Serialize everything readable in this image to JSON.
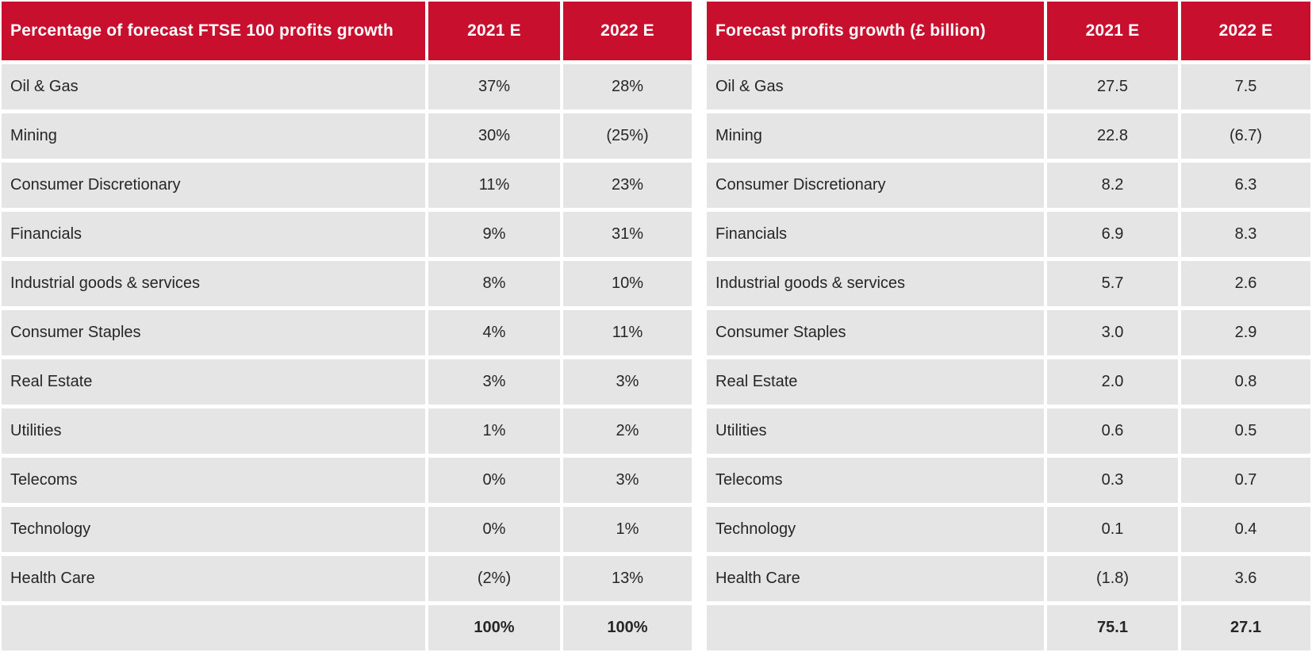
{
  "colors": {
    "header_bg": "#C8102E",
    "header_text": "#FFFFFF",
    "row_bg": "#E5E5E5",
    "body_text": "#262626",
    "page_bg": "#FFFFFF"
  },
  "tables": [
    {
      "title": "Percentage of forecast FTSE 100 profits growth",
      "columns": [
        "2021 E",
        "2022 E"
      ],
      "rows": [
        {
          "label": "Oil & Gas",
          "values": [
            "37%",
            "28%"
          ]
        },
        {
          "label": "Mining",
          "values": [
            "30%",
            "(25%)"
          ]
        },
        {
          "label": "Consumer Discretionary",
          "values": [
            "11%",
            "23%"
          ]
        },
        {
          "label": "Financials",
          "values": [
            "9%",
            "31%"
          ]
        },
        {
          "label": "Industrial goods & services",
          "values": [
            "8%",
            "10%"
          ]
        },
        {
          "label": "Consumer Staples",
          "values": [
            "4%",
            "11%"
          ]
        },
        {
          "label": "Real Estate",
          "values": [
            "3%",
            "3%"
          ]
        },
        {
          "label": "Utilities",
          "values": [
            "1%",
            "2%"
          ]
        },
        {
          "label": "Telecoms",
          "values": [
            "0%",
            "3%"
          ]
        },
        {
          "label": "Technology",
          "values": [
            "0%",
            "1%"
          ]
        },
        {
          "label": "Health Care",
          "values": [
            "(2%)",
            "13%"
          ]
        }
      ],
      "total": {
        "label": "",
        "values": [
          "100%",
          "100%"
        ]
      }
    },
    {
      "title": "Forecast profits growth (£ billion)",
      "columns": [
        "2021 E",
        "2022 E"
      ],
      "rows": [
        {
          "label": "Oil & Gas",
          "values": [
            "27.5",
            "7.5"
          ]
        },
        {
          "label": "Mining",
          "values": [
            "22.8",
            "(6.7)"
          ]
        },
        {
          "label": "Consumer Discretionary",
          "values": [
            "8.2",
            "6.3"
          ]
        },
        {
          "label": "Financials",
          "values": [
            "6.9",
            "8.3"
          ]
        },
        {
          "label": "Industrial goods & services",
          "values": [
            "5.7",
            "2.6"
          ]
        },
        {
          "label": "Consumer Staples",
          "values": [
            "3.0",
            "2.9"
          ]
        },
        {
          "label": "Real Estate",
          "values": [
            "2.0",
            "0.8"
          ]
        },
        {
          "label": "Utilities",
          "values": [
            "0.6",
            "0.5"
          ]
        },
        {
          "label": "Telecoms",
          "values": [
            "0.3",
            "0.7"
          ]
        },
        {
          "label": "Technology",
          "values": [
            "0.1",
            "0.4"
          ]
        },
        {
          "label": "Health Care",
          "values": [
            "(1.8)",
            "3.6"
          ]
        }
      ],
      "total": {
        "label": "",
        "values": [
          "75.1",
          "27.1"
        ]
      }
    }
  ],
  "chart_data": [
    {
      "type": "table",
      "title": "Percentage of forecast FTSE 100 profits growth",
      "categories": [
        "Oil & Gas",
        "Mining",
        "Consumer Discretionary",
        "Financials",
        "Industrial goods & services",
        "Consumer Staples",
        "Real Estate",
        "Utilities",
        "Telecoms",
        "Technology",
        "Health Care"
      ],
      "series": [
        {
          "name": "2021 E",
          "unit": "%",
          "values": [
            37,
            30,
            11,
            9,
            8,
            4,
            3,
            1,
            0,
            0,
            -2
          ],
          "total": 100
        },
        {
          "name": "2022 E",
          "unit": "%",
          "values": [
            28,
            -25,
            23,
            31,
            10,
            11,
            3,
            2,
            3,
            1,
            13
          ],
          "total": 100
        }
      ],
      "note": "negative values shown in parentheses"
    },
    {
      "type": "table",
      "title": "Forecast profits growth (£ billion)",
      "categories": [
        "Oil & Gas",
        "Mining",
        "Consumer Discretionary",
        "Financials",
        "Industrial goods & services",
        "Consumer Staples",
        "Real Estate",
        "Utilities",
        "Telecoms",
        "Technology",
        "Health Care"
      ],
      "series": [
        {
          "name": "2021 E",
          "unit": "£bn",
          "values": [
            27.5,
            22.8,
            8.2,
            6.9,
            5.7,
            3.0,
            2.0,
            0.6,
            0.3,
            0.1,
            -1.8
          ],
          "total": 75.1
        },
        {
          "name": "2022 E",
          "unit": "£bn",
          "values": [
            7.5,
            -6.7,
            6.3,
            8.3,
            2.6,
            2.9,
            0.8,
            0.5,
            0.7,
            0.4,
            3.6
          ],
          "total": 27.1
        }
      ],
      "note": "negative values shown in parentheses"
    }
  ]
}
